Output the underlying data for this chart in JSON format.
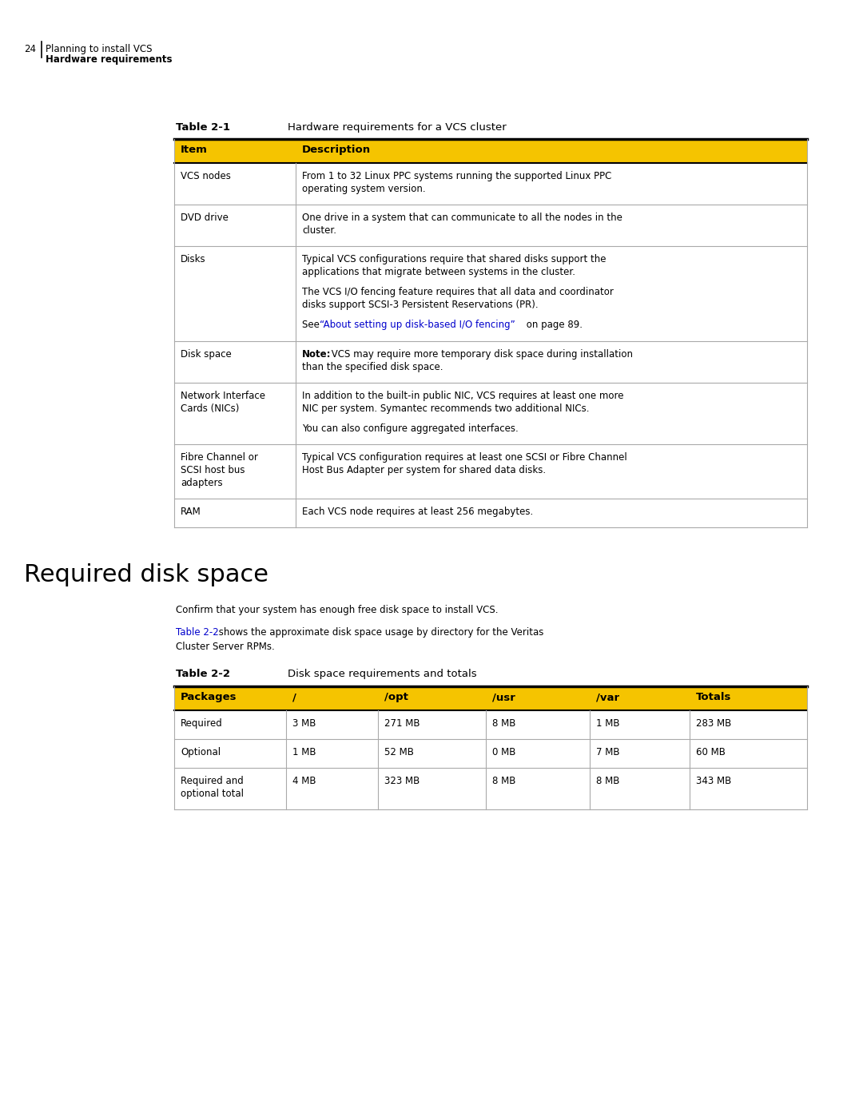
{
  "page_number": "24",
  "page_header_line1": "Planning to install VCS",
  "page_header_line2": "Hardware requirements",
  "table1_label": "Table 2-1",
  "table1_title": "Hardware requirements for a VCS cluster",
  "table1_header": [
    "Item",
    "Description"
  ],
  "table1_header_bg": "#F5C400",
  "table1_rows": [
    {
      "item": "VCS nodes",
      "desc_lines": [
        {
          "text": "From 1 to 32 Linux PPC systems running the supported Linux PPC",
          "style": "normal"
        },
        {
          "text": "operating system version.",
          "style": "normal"
        }
      ]
    },
    {
      "item": "DVD drive",
      "desc_lines": [
        {
          "text": "One drive in a system that can communicate to all the nodes in the",
          "style": "normal"
        },
        {
          "text": "cluster.",
          "style": "normal"
        }
      ]
    },
    {
      "item": "Disks",
      "desc_lines": [
        {
          "text": "Typical VCS configurations require that shared disks support the",
          "style": "normal"
        },
        {
          "text": "applications that migrate between systems in the cluster.",
          "style": "normal"
        },
        {
          "text": "",
          "style": "spacer"
        },
        {
          "text": "The VCS I/O fencing feature requires that all data and coordinator",
          "style": "normal"
        },
        {
          "text": "disks support SCSI-3 Persistent Reservations (PR).",
          "style": "normal"
        },
        {
          "text": "",
          "style": "spacer"
        },
        {
          "text": "See “About setting up disk-based I/O fencing” on page 89.",
          "style": "link_line",
          "link_part": "“About setting up disk-based I/O fencing”",
          "pre": "See ",
          "post": " on page 89."
        }
      ]
    },
    {
      "item": "Disk space",
      "desc_lines": [
        {
          "text": "Note: VCS may require more temporary disk space during installation",
          "style": "note_line",
          "bold_part": "Note:"
        },
        {
          "text": "than the specified disk space.",
          "style": "normal"
        }
      ]
    },
    {
      "item": "Network Interface\nCards (NICs)",
      "desc_lines": [
        {
          "text": "In addition to the built-in public NIC, VCS requires at least one more",
          "style": "normal"
        },
        {
          "text": "NIC per system. Symantec recommends two additional NICs.",
          "style": "normal"
        },
        {
          "text": "",
          "style": "spacer"
        },
        {
          "text": "You can also configure aggregated interfaces.",
          "style": "normal"
        }
      ]
    },
    {
      "item": "Fibre Channel or\nSCSI host bus\nadapters",
      "desc_lines": [
        {
          "text": "Typical VCS configuration requires at least one SCSI or Fibre Channel",
          "style": "normal"
        },
        {
          "text": "Host Bus Adapter per system for shared data disks.",
          "style": "normal"
        }
      ]
    },
    {
      "item": "RAM",
      "desc_lines": [
        {
          "text": "Each VCS node requires at least 256 megabytes.",
          "style": "normal"
        }
      ]
    }
  ],
  "section_title": "Required disk space",
  "section_para1": "Confirm that your system has enough free disk space to install VCS.",
  "section_para2_link": "Table 2-2",
  "section_para2_rest": " shows the approximate disk space usage by directory for the Veritas",
  "section_para2_line2": "Cluster Server RPMs.",
  "table2_label": "Table 2-2",
  "table2_title": "Disk space requirements and totals",
  "table2_header": [
    "Packages",
    "/",
    "/opt",
    "/usr",
    "/var",
    "Totals"
  ],
  "table2_header_bg": "#F5C400",
  "table2_rows": [
    [
      "Required",
      "3 MB",
      "271 MB",
      "8 MB",
      "1 MB",
      "283 MB"
    ],
    [
      "Optional",
      "1 MB",
      "52 MB",
      "0 MB",
      "7 MB",
      "60 MB"
    ],
    [
      "Required and\noptional total",
      "4 MB",
      "323 MB",
      "8 MB",
      "8 MB",
      "343 MB"
    ]
  ],
  "bg_color": "#FFFFFF",
  "text_color": "#000000",
  "link_color": "#0000CC",
  "sep_color": "#AAAAAA",
  "black": "#000000",
  "yellow": "#F5C400"
}
